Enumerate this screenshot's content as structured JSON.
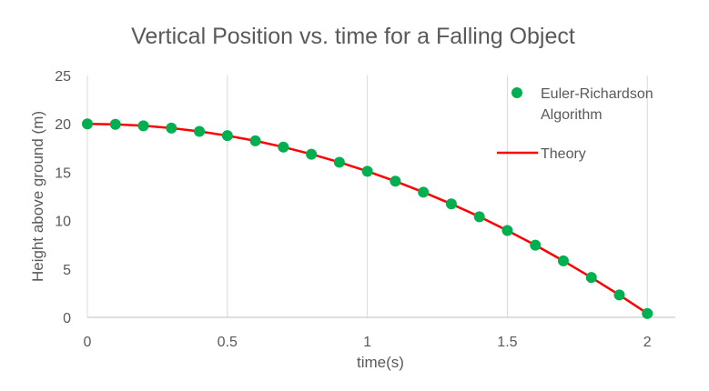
{
  "chart_data": {
    "type": "scatter",
    "title": "Vertical Position vs. time for a Falling Object",
    "xlabel": "time(s)",
    "ylabel": "Height above ground (m)",
    "xlim": [
      0,
      2.1
    ],
    "ylim": [
      0,
      25
    ],
    "x_ticks": [
      "0",
      "0.5",
      "1",
      "1.5",
      "2"
    ],
    "y_ticks": [
      "0",
      "5",
      "10",
      "15",
      "20",
      "25"
    ],
    "grid": {
      "vertical": true,
      "horizontal": false
    },
    "legend_position": "top-right",
    "series": [
      {
        "name": "Euler-Richardson Algorithm",
        "style": "markers",
        "color": "#00b050",
        "x": [
          0,
          0.1,
          0.2,
          0.3,
          0.4,
          0.5,
          0.6,
          0.7,
          0.8,
          0.9,
          1.0,
          1.1,
          1.2,
          1.3,
          1.4,
          1.5,
          1.6,
          1.7,
          1.8,
          1.9,
          2.0
        ],
        "y": [
          20.0,
          19.95,
          19.8,
          19.56,
          19.22,
          18.78,
          18.24,
          17.6,
          16.86,
          16.03,
          15.1,
          14.07,
          12.94,
          11.72,
          10.4,
          8.98,
          7.46,
          5.84,
          4.12,
          2.31,
          0.4
        ]
      },
      {
        "name": "Theory",
        "style": "line",
        "color": "#ff0000",
        "x": [
          0,
          0.1,
          0.2,
          0.3,
          0.4,
          0.5,
          0.6,
          0.7,
          0.8,
          0.9,
          1.0,
          1.1,
          1.2,
          1.3,
          1.4,
          1.5,
          1.6,
          1.7,
          1.8,
          1.9,
          2.0
        ],
        "y": [
          20.0,
          19.95,
          19.8,
          19.56,
          19.22,
          18.78,
          18.24,
          17.6,
          16.86,
          16.03,
          15.1,
          14.07,
          12.94,
          11.72,
          10.4,
          8.98,
          7.46,
          5.84,
          4.12,
          2.31,
          0.4
        ]
      }
    ]
  }
}
